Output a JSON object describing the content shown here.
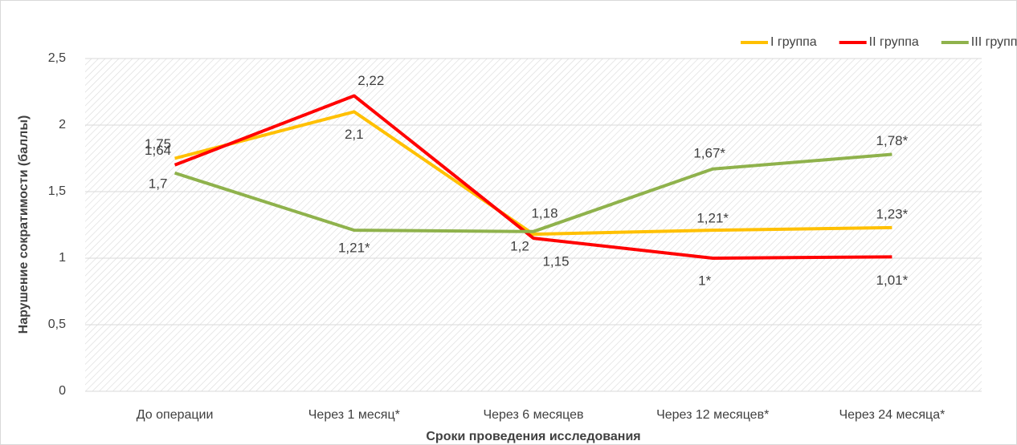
{
  "chart_data": {
    "type": "line",
    "y_label": "Нарушение сократимости (баллы)",
    "x_label": "Сроки проведения исследования",
    "categories": [
      "До операции",
      "Через 1 месяц*",
      "Через 6 месяцев",
      "Через 12 месяцев*",
      "Через 24 месяца*"
    ],
    "series": [
      {
        "name": "I группа",
        "color": "#ffc000",
        "values": [
          1.75,
          2.1,
          1.18,
          1.21,
          1.23
        ],
        "value_labels": [
          "1,75",
          "2,1",
          "1,18",
          "1,21*",
          "1,23*"
        ]
      },
      {
        "name": "II группа",
        "color": "#ff0000",
        "values": [
          1.7,
          2.22,
          1.15,
          1,
          1.01
        ],
        "value_labels": [
          "1,7",
          "2,22",
          "1,15",
          "1*",
          "1,01*"
        ]
      },
      {
        "name": "III группа",
        "color": "#8fb24c",
        "values": [
          1.64,
          1.21,
          1.2,
          1.67,
          1.78
        ],
        "value_labels": [
          "1,64",
          "1,21*",
          "1,2",
          "1,67*",
          "1,78*"
        ]
      }
    ],
    "ylim": [
      0,
      2.5
    ],
    "yticks": [
      0,
      {
        "value": 0.5,
        "label": "0,5"
      },
      1,
      {
        "value": 1.5,
        "label": "1,5"
      },
      2,
      {
        "value": 2.5,
        "label": "2,5"
      }
    ],
    "grid": true,
    "legend": "top-right"
  }
}
